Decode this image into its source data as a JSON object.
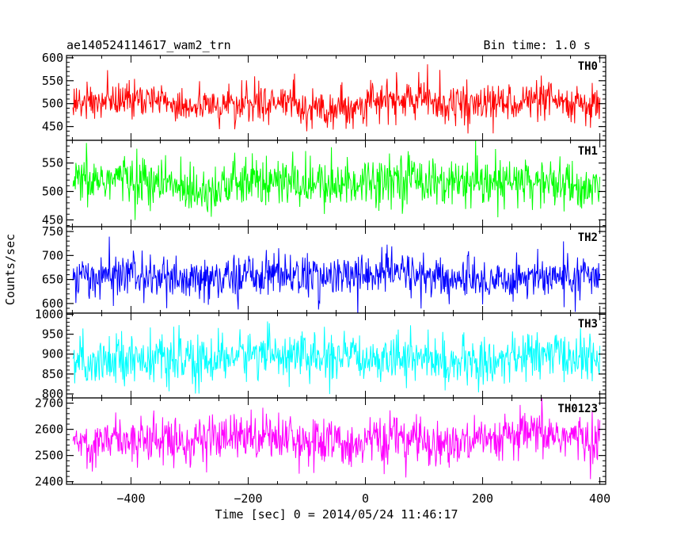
{
  "header": {
    "title": "ae140524114617_wam2_trn",
    "bin_time": "Bin time: 1.0 s"
  },
  "chart_data": {
    "type": "line",
    "title": "ae140524114617_wam2_trn",
    "bin_time": "Bin time: 1.0 s",
    "xlabel": "Time [sec] 0 = 2014/05/24 11:46:17",
    "ylabel": "Counts/sec",
    "xlim": [
      -510,
      410
    ],
    "x_range": [
      -499,
      400
    ],
    "x_step": 1,
    "x_ticks": [
      -400,
      -200,
      0,
      200,
      400
    ],
    "x_tick_labels": [
      "−400",
      "−200",
      "0",
      "200",
      "400"
    ],
    "grid": false,
    "panels": [
      {
        "name": "TH0",
        "color": "#ff0000",
        "ylim": [
          420,
          605
        ],
        "ticks": [
          450,
          500,
          550,
          600
        ],
        "tick_labels": [
          "450",
          "500",
          "550",
          "600"
        ],
        "mean": 500,
        "noise_sd": 23
      },
      {
        "name": "TH1",
        "color": "#00ff00",
        "ylim": [
          438,
          590
        ],
        "ticks": [
          450,
          500,
          550
        ],
        "tick_labels": [
          "450",
          "500",
          "550"
        ],
        "mean": 515,
        "noise_sd": 24
      },
      {
        "name": "TH2",
        "color": "#0000ff",
        "ylim": [
          580,
          760
        ],
        "ticks": [
          600,
          650,
          700,
          750
        ],
        "tick_labels": [
          "600",
          "650",
          "700",
          "750"
        ],
        "mean": 656,
        "noise_sd": 25
      },
      {
        "name": "TH3",
        "color": "#00ffff",
        "ylim": [
          790,
          1003
        ],
        "ticks": [
          800,
          850,
          900,
          950,
          1000
        ],
        "tick_labels": [
          "800",
          "850",
          "900",
          "950",
          "1000"
        ],
        "mean": 890,
        "noise_sd": 32
      },
      {
        "name": "TH0123",
        "color": "#ff00ff",
        "ylim": [
          2390,
          2720
        ],
        "ticks": [
          2400,
          2500,
          2600,
          2700
        ],
        "tick_labels": [
          "2400",
          "2500",
          "2600",
          "2700"
        ],
        "mean": 2560,
        "noise_sd": 50
      }
    ]
  }
}
